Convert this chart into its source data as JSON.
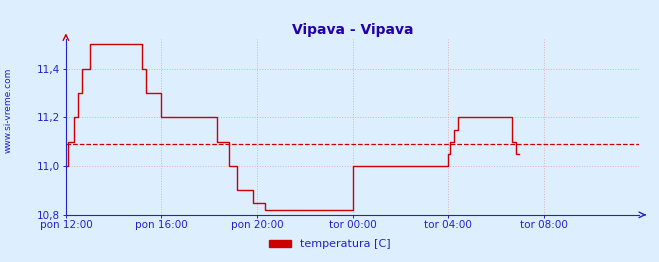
{
  "title": "Vipava - Vipava",
  "ylabel_left": "www.si-vreme.com",
  "legend_label": "temperatura [C]",
  "legend_color": "#cc0000",
  "background_color": "#ddeeff",
  "plot_bg_color": "#ddeeff",
  "grid_color_major": "#c8a0a0",
  "grid_color_minor": "#d8c8c8",
  "axis_color": "#2222cc",
  "line_color": "#cc0000",
  "avg_line_color": "#cc0000",
  "avg_line_style": "--",
  "avg_value": 11.09,
  "title_color": "#2200aa",
  "title_fontsize": 10,
  "tick_label_color": "#2222cc",
  "ylabel_color": "#2222cc",
  "ylim": [
    10.8,
    11.52
  ],
  "yticks": [
    10.8,
    11.0,
    11.2,
    11.4
  ],
  "xtick_labels": [
    "pon 12:00",
    "pon 16:00",
    "pon 20:00",
    "tor 00:00",
    "tor 04:00",
    "tor 08:00"
  ],
  "xtick_positions": [
    0,
    96,
    192,
    288,
    384,
    480
  ],
  "total_points": 576,
  "temperature_data": [
    11.0,
    11.0,
    11.1,
    11.1,
    11.1,
    11.1,
    11.1,
    11.1,
    11.2,
    11.2,
    11.2,
    11.2,
    11.3,
    11.3,
    11.3,
    11.3,
    11.4,
    11.4,
    11.4,
    11.4,
    11.4,
    11.4,
    11.4,
    11.4,
    11.5,
    11.5,
    11.5,
    11.5,
    11.5,
    11.5,
    11.5,
    11.5,
    11.5,
    11.5,
    11.5,
    11.5,
    11.5,
    11.5,
    11.5,
    11.5,
    11.5,
    11.5,
    11.5,
    11.5,
    11.5,
    11.5,
    11.5,
    11.5,
    11.5,
    11.5,
    11.5,
    11.5,
    11.5,
    11.5,
    11.5,
    11.5,
    11.5,
    11.5,
    11.5,
    11.5,
    11.5,
    11.5,
    11.5,
    11.5,
    11.5,
    11.5,
    11.5,
    11.5,
    11.5,
    11.5,
    11.5,
    11.5,
    11.5,
    11.5,
    11.5,
    11.5,
    11.4,
    11.4,
    11.4,
    11.4,
    11.3,
    11.3,
    11.3,
    11.3,
    11.3,
    11.3,
    11.3,
    11.3,
    11.3,
    11.3,
    11.3,
    11.3,
    11.3,
    11.3,
    11.3,
    11.3,
    11.2,
    11.2,
    11.2,
    11.2,
    11.2,
    11.2,
    11.2,
    11.2,
    11.2,
    11.2,
    11.2,
    11.2,
    11.2,
    11.2,
    11.2,
    11.2,
    11.2,
    11.2,
    11.2,
    11.2,
    11.2,
    11.2,
    11.2,
    11.2,
    11.2,
    11.2,
    11.2,
    11.2,
    11.2,
    11.2,
    11.2,
    11.2,
    11.2,
    11.2,
    11.2,
    11.2,
    11.2,
    11.2,
    11.2,
    11.2,
    11.2,
    11.2,
    11.2,
    11.2,
    11.2,
    11.2,
    11.2,
    11.2,
    11.2,
    11.2,
    11.2,
    11.2,
    11.2,
    11.2,
    11.2,
    11.2,
    11.1,
    11.1,
    11.1,
    11.1,
    11.1,
    11.1,
    11.1,
    11.1,
    11.1,
    11.1,
    11.1,
    11.1,
    11.0,
    11.0,
    11.0,
    11.0,
    11.0,
    11.0,
    11.0,
    11.0,
    10.9,
    10.9,
    10.9,
    10.9,
    10.9,
    10.9,
    10.9,
    10.9,
    10.9,
    10.9,
    10.9,
    10.9,
    10.9,
    10.9,
    10.9,
    10.9,
    10.85,
    10.85,
    10.85,
    10.85,
    10.85,
    10.85,
    10.85,
    10.85,
    10.85,
    10.85,
    10.85,
    10.85,
    10.82,
    10.82,
    10.82,
    10.82,
    10.82,
    10.82,
    10.82,
    10.82,
    10.82,
    10.82,
    10.82,
    10.82,
    10.82,
    10.82,
    10.82,
    10.82,
    10.82,
    10.82,
    10.82,
    10.82,
    10.82,
    10.82,
    10.82,
    10.82,
    10.82,
    10.82,
    10.82,
    10.82,
    10.82,
    10.82,
    10.82,
    10.82,
    10.82,
    10.82,
    10.82,
    10.82,
    10.82,
    10.82,
    10.82,
    10.82,
    10.82,
    10.82,
    10.82,
    10.82,
    10.82,
    10.82,
    10.82,
    10.82,
    10.82,
    10.82,
    10.82,
    10.82,
    10.82,
    10.82,
    10.82,
    10.82,
    10.82,
    10.82,
    10.82,
    10.82,
    10.82,
    10.82,
    10.82,
    10.82,
    10.82,
    10.82,
    10.82,
    10.82,
    10.82,
    10.82,
    10.82,
    10.82,
    10.82,
    10.82,
    10.82,
    10.82,
    10.82,
    10.82,
    10.82,
    10.82,
    10.82,
    10.82,
    10.82,
    10.82,
    10.82,
    10.82,
    10.82,
    10.82,
    11.0,
    11.0,
    11.0,
    11.0,
    11.0,
    11.0,
    11.0,
    11.0,
    11.0,
    11.0,
    11.0,
    11.0,
    11.0,
    11.0,
    11.0,
    11.0,
    11.0,
    11.0,
    11.0,
    11.0,
    11.0,
    11.0,
    11.0,
    11.0,
    11.0,
    11.0,
    11.0,
    11.0,
    11.0,
    11.0,
    11.0,
    11.0,
    11.0,
    11.0,
    11.0,
    11.0,
    11.0,
    11.0,
    11.0,
    11.0,
    11.0,
    11.0,
    11.0,
    11.0,
    11.0,
    11.0,
    11.0,
    11.0,
    11.0,
    11.0,
    11.0,
    11.0,
    11.0,
    11.0,
    11.0,
    11.0,
    11.0,
    11.0,
    11.0,
    11.0,
    11.0,
    11.0,
    11.0,
    11.0,
    11.0,
    11.0,
    11.0,
    11.0,
    11.0,
    11.0,
    11.0,
    11.0,
    11.0,
    11.0,
    11.0,
    11.0,
    11.0,
    11.0,
    11.0,
    11.0,
    11.0,
    11.0,
    11.0,
    11.0,
    11.0,
    11.0,
    11.0,
    11.0,
    11.0,
    11.0,
    11.0,
    11.0,
    11.0,
    11.0,
    11.0,
    11.0,
    11.05,
    11.05,
    11.1,
    11.1,
    11.1,
    11.1,
    11.15,
    11.15,
    11.15,
    11.15,
    11.2,
    11.2,
    11.2,
    11.2,
    11.2,
    11.2,
    11.2,
    11.2,
    11.2,
    11.2,
    11.2,
    11.2,
    11.2,
    11.2,
    11.2,
    11.2,
    11.2,
    11.2,
    11.2,
    11.2,
    11.2,
    11.2,
    11.2,
    11.2,
    11.2,
    11.2,
    11.2,
    11.2,
    11.2,
    11.2,
    11.2,
    11.2,
    11.2,
    11.2,
    11.2,
    11.2,
    11.2,
    11.2,
    11.2,
    11.2,
    11.2,
    11.2,
    11.2,
    11.2,
    11.2,
    11.2,
    11.2,
    11.2,
    11.2,
    11.2,
    11.2,
    11.2,
    11.2,
    11.2,
    11.1,
    11.1,
    11.1,
    11.1,
    11.05,
    11.05,
    11.05,
    11.05
  ]
}
